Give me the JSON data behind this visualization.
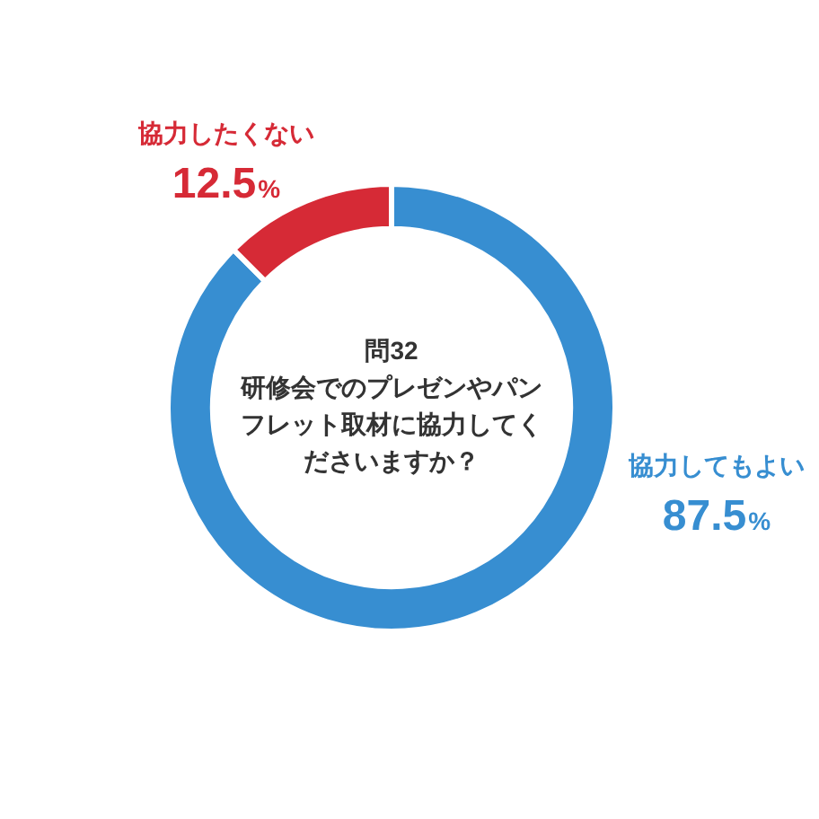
{
  "chart_data": {
    "type": "donut",
    "title": "問32",
    "subtitle": "研修会でのプレゼンやパンフレット取材に協力してくださいますか？",
    "categories": [
      "協力してもよい",
      "協力したくない"
    ],
    "values": [
      87.5,
      12.5
    ],
    "colors": [
      "#378ed1",
      "#d62a36"
    ],
    "value_labels": [
      "87.5%",
      "12.5%"
    ],
    "legend": false
  }
}
